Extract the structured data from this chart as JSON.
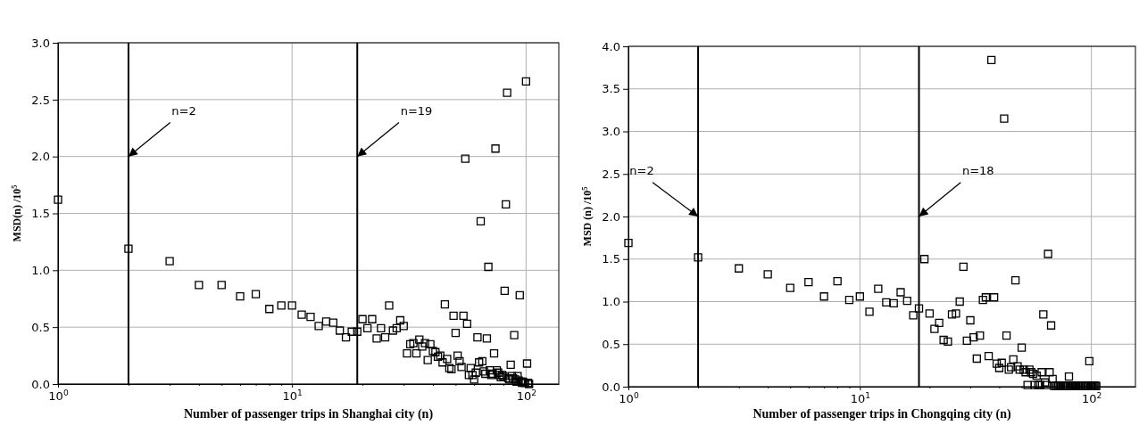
{
  "chart_data": [
    {
      "type": "scatter",
      "xlabel": "Number of passenger trips in Shanghai city (n)",
      "ylabel": "MSD(n) /10$^{5}$",
      "log": "x",
      "grid": true,
      "marker": "square",
      "xlim": [
        1,
        138
      ],
      "ylim": [
        0,
        3.0
      ],
      "xticks": [
        {
          "value": 1,
          "label": "10$^{0}$"
        },
        {
          "value": 2,
          "label": null
        },
        {
          "value": 3,
          "label": null
        },
        {
          "value": 4,
          "label": null
        },
        {
          "value": 5,
          "label": null
        },
        {
          "value": 6,
          "label": null
        },
        {
          "value": 7,
          "label": null
        },
        {
          "value": 8,
          "label": null
        },
        {
          "value": 9,
          "label": null
        },
        {
          "value": 10,
          "label": "10$^{1}$"
        },
        {
          "value": 20,
          "label": null
        },
        {
          "value": 30,
          "label": null
        },
        {
          "value": 40,
          "label": null
        },
        {
          "value": 50,
          "label": null
        },
        {
          "value": 60,
          "label": null
        },
        {
          "value": 70,
          "label": null
        },
        {
          "value": 80,
          "label": null
        },
        {
          "value": 90,
          "label": null
        },
        {
          "value": 100,
          "label": "10$^{2}$"
        }
      ],
      "yticks": [
        {
          "value": 0,
          "label": "0.0"
        },
        {
          "value": 0.5,
          "label": "0.5"
        },
        {
          "value": 1,
          "label": "1.0"
        },
        {
          "value": 1.5,
          "label": "1.5"
        },
        {
          "value": 2,
          "label": "2.0"
        },
        {
          "value": 2.5,
          "label": "2.5"
        },
        {
          "value": 3,
          "label": "3.0"
        }
      ],
      "ref_lines": [
        {
          "axis": "x",
          "value": 2,
          "color": "#000000"
        },
        {
          "axis": "x",
          "value": 19,
          "color": "#000000"
        }
      ],
      "annotations": [
        {
          "text": "n=2",
          "x": 2,
          "y": 2.0
        },
        {
          "text": "n=19",
          "x": 19,
          "y": 2.0
        }
      ],
      "series": [
        {
          "color": "#000000",
          "x": [
            1,
            2,
            3,
            4,
            5,
            6,
            7,
            8,
            9,
            10,
            11,
            12,
            13,
            14,
            15,
            16,
            17,
            18,
            19,
            20,
            21,
            22,
            23,
            24,
            25,
            26,
            27,
            28,
            29,
            30,
            31,
            32,
            33,
            34,
            35,
            36,
            37,
            38,
            39,
            40,
            41,
            42,
            43,
            44,
            45,
            46,
            47,
            48,
            49,
            50,
            51,
            52,
            53,
            54,
            55,
            56,
            57,
            58,
            59,
            60,
            61,
            62,
            63,
            64,
            65,
            66,
            67,
            68,
            69,
            70,
            71,
            72,
            73,
            74,
            75,
            76,
            77,
            78,
            79,
            80,
            81,
            82,
            83,
            84,
            85,
            86,
            87,
            88,
            89,
            90,
            91,
            92,
            93,
            94,
            95,
            96,
            97,
            98,
            99,
            100,
            101,
            102,
            103
          ],
          "values": [
            1.62,
            1.19,
            1.08,
            0.87,
            0.87,
            0.77,
            0.79,
            0.66,
            0.69,
            0.69,
            0.61,
            0.59,
            0.51,
            0.55,
            0.54,
            0.47,
            0.41,
            0.46,
            0.46,
            0.57,
            0.49,
            0.57,
            0.4,
            0.49,
            0.41,
            0.69,
            0.47,
            0.49,
            0.56,
            0.51,
            0.27,
            0.35,
            0.36,
            0.27,
            0.39,
            0.33,
            0.36,
            0.21,
            0.35,
            0.29,
            0.28,
            0.24,
            0.25,
            0.19,
            0.7,
            0.22,
            0.14,
            0.13,
            0.6,
            0.45,
            0.25,
            0.2,
            0.15,
            0.6,
            1.98,
            0.53,
            0.08,
            0.14,
            0.08,
            0.04,
            0.1,
            0.41,
            0.19,
            1.43,
            0.2,
            0.11,
            0.09,
            0.4,
            1.03,
            0.12,
            0.08,
            0.09,
            0.27,
            2.07,
            0.12,
            0.1,
            0.08,
            0.06,
            0.08,
            0.07,
            0.82,
            1.58,
            2.56,
            0.05,
            0.04,
            0.17,
            0.07,
            0.05,
            0.43,
            0.04,
            0.02,
            0.07,
            0.03,
            0.78,
            0.02,
            0.01,
            0.02,
            0.01,
            0.01,
            2.66,
            0.18,
            0.01,
            0
          ]
        }
      ]
    },
    {
      "type": "scatter",
      "xlabel": "Number of passenger trips in Chongqing city (n)",
      "ylabel": "MSD (n) /10$^{5}$",
      "log": "x",
      "grid": true,
      "marker": "square",
      "xlim": [
        1,
        155
      ],
      "ylim": [
        0,
        4.0
      ],
      "xticks": [
        {
          "value": 1,
          "label": "10$^{0}$"
        },
        {
          "value": 2,
          "label": null
        },
        {
          "value": 3,
          "label": null
        },
        {
          "value": 4,
          "label": null
        },
        {
          "value": 5,
          "label": null
        },
        {
          "value": 6,
          "label": null
        },
        {
          "value": 7,
          "label": null
        },
        {
          "value": 8,
          "label": null
        },
        {
          "value": 9,
          "label": null
        },
        {
          "value": 10,
          "label": "10$^{1}$"
        },
        {
          "value": 20,
          "label": null
        },
        {
          "value": 30,
          "label": null
        },
        {
          "value": 40,
          "label": null
        },
        {
          "value": 50,
          "label": null
        },
        {
          "value": 60,
          "label": null
        },
        {
          "value": 70,
          "label": null
        },
        {
          "value": 80,
          "label": null
        },
        {
          "value": 90,
          "label": null
        },
        {
          "value": 100,
          "label": "10$^{2}$"
        }
      ],
      "yticks": [
        {
          "value": 0,
          "label": "0.0"
        },
        {
          "value": 0.5,
          "label": "0.5"
        },
        {
          "value": 1,
          "label": "1.0"
        },
        {
          "value": 1.5,
          "label": "1.5"
        },
        {
          "value": 2,
          "label": "2.0"
        },
        {
          "value": 2.5,
          "label": "2.5"
        },
        {
          "value": 3,
          "label": "3.0"
        },
        {
          "value": 3.5,
          "label": "3.5"
        },
        {
          "value": 4,
          "label": "4.0"
        }
      ],
      "ref_lines": [
        {
          "axis": "x",
          "value": 2,
          "color": "#000000"
        },
        {
          "axis": "x",
          "value": 18,
          "color": "#000000"
        }
      ],
      "annotations": [
        {
          "text": "n=2",
          "x": 2,
          "y": 2.0
        },
        {
          "text": "n=18",
          "x": 18,
          "y": 2.0
        }
      ],
      "series": [
        {
          "color": "#000000",
          "x": [
            1,
            2,
            3,
            4,
            5,
            6,
            7,
            8,
            9,
            10,
            11,
            12,
            13,
            14,
            15,
            16,
            17,
            18,
            19,
            20,
            21,
            22,
            23,
            24,
            25,
            26,
            27,
            28,
            29,
            30,
            31,
            32,
            33,
            34,
            35,
            36,
            37,
            38,
            39,
            40,
            41,
            42,
            43,
            44,
            45,
            46,
            47,
            48,
            49,
            50,
            51,
            52,
            53,
            54,
            55,
            56,
            57,
            58,
            59,
            60,
            61,
            62,
            63,
            64,
            65,
            66,
            67,
            68,
            69,
            70,
            71,
            72,
            73,
            74,
            75,
            76,
            77,
            78,
            79,
            80,
            81,
            82,
            83,
            84,
            85,
            86,
            87,
            88,
            90,
            91,
            94,
            95,
            96,
            97,
            98,
            99,
            100,
            101,
            102,
            103,
            104,
            105
          ],
          "values": [
            1.69,
            1.52,
            1.39,
            1.32,
            1.16,
            1.23,
            1.06,
            1.24,
            1.02,
            1.06,
            0.88,
            1.15,
            0.99,
            0.98,
            1.11,
            1.01,
            0.84,
            0.92,
            1.5,
            0.86,
            0.68,
            0.75,
            0.55,
            0.53,
            0.85,
            0.86,
            1.0,
            1.41,
            0.54,
            0.78,
            0.58,
            0.33,
            0.6,
            1.02,
            1.05,
            0.36,
            3.84,
            1.05,
            0.27,
            0.22,
            0.28,
            3.15,
            0.6,
            0.2,
            0.23,
            0.32,
            1.25,
            0.24,
            0.2,
            0.46,
            0.2,
            0.17,
            0.02,
            0.2,
            0.17,
            0.15,
            0.02,
            0.13,
            0.02,
            0.02,
            0.17,
            0.85,
            0.05,
            0.02,
            1.56,
            0.17,
            0.72,
            0.09,
            0.01,
            0.01,
            0.01,
            0.01,
            0.01,
            0.01,
            0.01,
            0.01,
            0.01,
            0.01,
            0.01,
            0.12,
            0.01,
            0.01,
            0.01,
            0.01,
            0.01,
            0.01,
            0.01,
            0.01,
            0.01,
            0.01,
            0.01,
            0.01,
            0.01,
            0.01,
            0.3,
            0.01,
            0.01,
            0.01,
            0.01,
            0.01,
            0.01,
            0.01
          ]
        }
      ]
    }
  ]
}
